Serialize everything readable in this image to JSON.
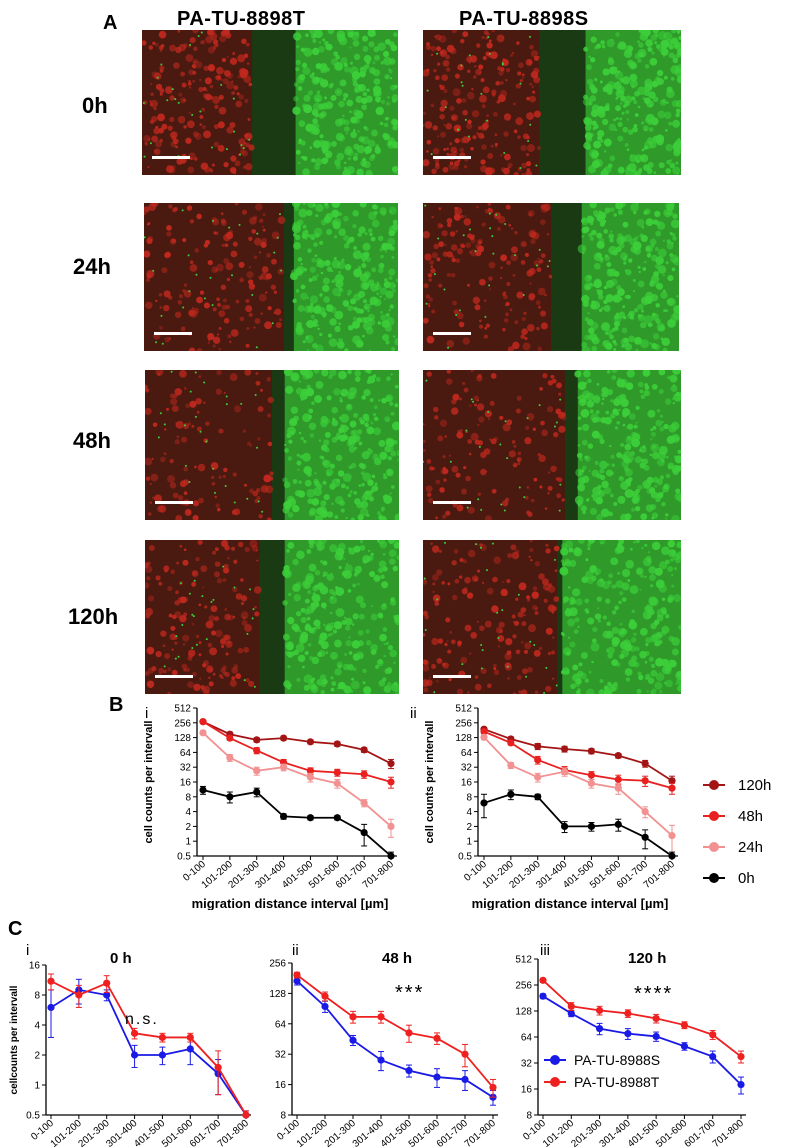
{
  "panel_a": {
    "letter": "A",
    "columns": [
      "PA-TU-8898T",
      "PA-TU-8898S"
    ],
    "rows": [
      "0h",
      "24h",
      "48h",
      "120h"
    ],
    "colors": {
      "red_channel": "#c0281e",
      "green_channel": "#3ccf3a",
      "background": "#1a3a14"
    }
  },
  "panel_b": {
    "letter": "B"
  },
  "panel_c": {
    "letter": "C"
  },
  "chart_data": [
    {
      "id": "B-i",
      "type": "line",
      "panel_label": "i",
      "ylabel": "cell counts per intervall",
      "xlabel": "migration distance interval [µm]",
      "yscale": "log2",
      "ylim": [
        0.5,
        512
      ],
      "yticks": [
        "0.5",
        "1",
        "2",
        "4",
        "8",
        "16",
        "32",
        "64",
        "128",
        "256",
        "512"
      ],
      "categories": [
        "0-100",
        "101-200",
        "201-300",
        "301-400",
        "401-500",
        "501-600",
        "601-700",
        "701-800"
      ],
      "series": [
        {
          "name": "120h",
          "color": "#a31515",
          "values": [
            270,
            150,
            115,
            125,
            105,
            95,
            72,
            38
          ],
          "err": [
            20,
            15,
            12,
            12,
            10,
            10,
            8,
            8
          ]
        },
        {
          "name": "48h",
          "color": "#e8201f",
          "values": [
            270,
            125,
            70,
            40,
            27,
            25,
            23,
            16
          ],
          "err": [
            20,
            12,
            10,
            6,
            4,
            4,
            4,
            4
          ]
        },
        {
          "name": "24h",
          "color": "#f29191",
          "values": [
            160,
            50,
            27,
            32,
            20,
            15,
            6,
            2
          ],
          "err": [
            15,
            8,
            5,
            5,
            4,
            3,
            1,
            0.8
          ]
        },
        {
          "name": "0h",
          "color": "#000000",
          "values": [
            11,
            8,
            10,
            3.2,
            3,
            3,
            1.5,
            0.5
          ],
          "err": [
            2,
            2,
            2,
            0.4,
            0.3,
            0.3,
            0.7,
            0.1
          ]
        }
      ]
    },
    {
      "id": "B-ii",
      "type": "line",
      "panel_label": "ii",
      "ylabel": "cell counts per intervall",
      "xlabel": "migration distance interval [µm]",
      "yscale": "log2",
      "ylim": [
        0.5,
        512
      ],
      "yticks": [
        "0.5",
        "1",
        "2",
        "4",
        "8",
        "16",
        "32",
        "64",
        "128",
        "256",
        "512"
      ],
      "categories": [
        "0-100",
        "101-200",
        "201-300",
        "301-400",
        "401-500",
        "501-600",
        "601-700",
        "701-800"
      ],
      "series": [
        {
          "name": "120h",
          "color": "#a31515",
          "values": [
            190,
            120,
            85,
            75,
            68,
            55,
            38,
            17
          ],
          "err": [
            15,
            12,
            12,
            10,
            8,
            6,
            6,
            4
          ]
        },
        {
          "name": "48h",
          "color": "#e8201f",
          "values": [
            170,
            100,
            45,
            28,
            22,
            18,
            17,
            12
          ],
          "err": [
            15,
            10,
            8,
            5,
            4,
            4,
            4,
            3
          ]
        },
        {
          "name": "24h",
          "color": "#f29191",
          "values": [
            130,
            35,
            20,
            26,
            15,
            12,
            4,
            1.3
          ],
          "err": [
            15,
            5,
            4,
            5,
            3,
            3,
            1,
            0.8
          ]
        },
        {
          "name": "0h",
          "color": "#000000",
          "values": [
            6,
            9,
            8,
            2,
            2,
            2.2,
            1.2,
            0.5
          ],
          "err": [
            3,
            2,
            1,
            0.5,
            0.4,
            0.6,
            0.5,
            0.1
          ]
        }
      ]
    },
    {
      "id": "C-i",
      "type": "line",
      "panel_label": "i",
      "title": "0 h",
      "annotation": "n.s.",
      "ylabel": "cellcounts per intervall",
      "yscale": "log2",
      "ylim": [
        0.5,
        16
      ],
      "yticks": [
        "0.5",
        "1",
        "2",
        "4",
        "8",
        "16"
      ],
      "categories": [
        "0-100",
        "101-200",
        "201-300",
        "301-400",
        "401-500",
        "501-600",
        "601-700",
        "701-800"
      ],
      "series": [
        {
          "name": "PA-TU-8988S",
          "color": "#1a1ae6",
          "values": [
            6,
            9,
            8,
            2,
            2,
            2.3,
            1.3,
            0.5
          ],
          "err": [
            3,
            2.5,
            1,
            0.5,
            0.4,
            0.7,
            0.5,
            0.05
          ]
        },
        {
          "name": "PA-TU-8988T",
          "color": "#ee2020",
          "values": [
            11,
            8,
            10.5,
            3.3,
            3,
            3,
            1.5,
            0.5
          ],
          "err": [
            2,
            2,
            2,
            0.4,
            0.3,
            0.3,
            0.7,
            0.05
          ]
        }
      ]
    },
    {
      "id": "C-ii",
      "type": "line",
      "panel_label": "ii",
      "title": "48 h",
      "annotation": "***",
      "yscale": "log2",
      "ylim": [
        8,
        256
      ],
      "yticks": [
        "8",
        "16",
        "32",
        "64",
        "128",
        "256"
      ],
      "categories": [
        "0-100",
        "101-200",
        "201-300",
        "301-400",
        "401-500",
        "501-600",
        "601-700",
        "701-800"
      ],
      "series": [
        {
          "name": "PA-TU-8988S",
          "color": "#1a1ae6",
          "values": [
            170,
            95,
            44,
            28,
            22,
            19,
            18,
            12
          ],
          "err": [
            15,
            12,
            5,
            6,
            3,
            4,
            4,
            2
          ]
        },
        {
          "name": "PA-TU-8988T",
          "color": "#ee2020",
          "values": [
            195,
            120,
            75,
            75,
            52,
            46,
            32,
            15
          ],
          "err": [
            12,
            12,
            10,
            10,
            10,
            6,
            8,
            3
          ]
        }
      ]
    },
    {
      "id": "C-iii",
      "type": "line",
      "panel_label": "iii",
      "title": "120 h",
      "annotation": "****",
      "yscale": "log2",
      "ylim": [
        8,
        512
      ],
      "yticks": [
        "8",
        "16",
        "32",
        "64",
        "128",
        "256",
        "512"
      ],
      "categories": [
        "0-100",
        "101-200",
        "201-300",
        "301-400",
        "401-500",
        "501-600",
        "601-700",
        "701-800"
      ],
      "legend": "bottom-left",
      "series": [
        {
          "name": "PA-TU-8988S",
          "color": "#1a1ae6",
          "values": [
            190,
            120,
            80,
            70,
            65,
            50,
            38,
            18
          ],
          "err": [
            12,
            10,
            12,
            10,
            8,
            5,
            6,
            4
          ]
        },
        {
          "name": "PA-TU-8988T",
          "color": "#ee2020",
          "values": [
            290,
            145,
            130,
            120,
            105,
            88,
            68,
            38
          ],
          "err": [
            15,
            15,
            15,
            12,
            12,
            8,
            8,
            6
          ]
        }
      ]
    }
  ]
}
